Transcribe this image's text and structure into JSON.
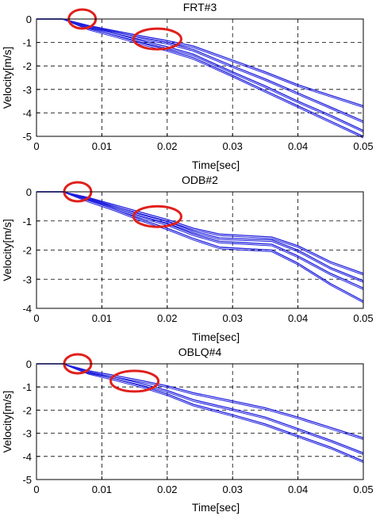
{
  "chart_data": [
    {
      "type": "line",
      "title": "FRT#3",
      "xlabel": "Time[sec]",
      "ylabel": "Velocity[m/s]",
      "xlim": [
        0,
        0.05
      ],
      "ylim": [
        -5,
        0
      ],
      "xticks": [
        "0",
        "0.01",
        "0.02",
        "0.03",
        "0.04",
        "0.05"
      ],
      "yticks": [
        "0",
        "-1",
        "-2",
        "-3",
        "-4",
        "-5"
      ],
      "grid": true,
      "series_color": "#1f1fdd",
      "highlight_color": "#e0201c",
      "series": [
        {
          "x": [
            0,
            0.004,
            0.008,
            0.012,
            0.016,
            0.02,
            0.024,
            0.03,
            0.035,
            0.04,
            0.045,
            0.05
          ],
          "y": [
            0,
            0,
            -0.3,
            -0.55,
            -0.8,
            -1.0,
            -1.3,
            -2.0,
            -2.55,
            -3.15,
            -3.75,
            -4.35
          ]
        },
        {
          "x": [
            0,
            0.004,
            0.008,
            0.012,
            0.016,
            0.02,
            0.024,
            0.03,
            0.035,
            0.04,
            0.045,
            0.05
          ],
          "y": [
            0,
            0,
            -0.35,
            -0.62,
            -0.92,
            -1.18,
            -1.5,
            -2.25,
            -2.85,
            -3.5,
            -4.1,
            -4.75
          ]
        },
        {
          "x": [
            0,
            0.004,
            0.008,
            0.012,
            0.016,
            0.02,
            0.024,
            0.03,
            0.035,
            0.04,
            0.045,
            0.05
          ],
          "y": [
            0,
            0,
            -0.4,
            -0.7,
            -1.02,
            -1.3,
            -1.65,
            -2.4,
            -3.05,
            -3.7,
            -4.35,
            -5.0
          ]
        },
        {
          "x": [
            0,
            0.004,
            0.008,
            0.012,
            0.016,
            0.02,
            0.024,
            0.03,
            0.035,
            0.04,
            0.045,
            0.05
          ],
          "y": [
            0,
            0,
            -0.28,
            -0.5,
            -0.72,
            -0.92,
            -1.15,
            -1.75,
            -2.25,
            -2.8,
            -3.25,
            -3.7
          ]
        }
      ],
      "highlights": [
        {
          "x": 0.007,
          "y": 0.0
        },
        {
          "x": 0.0185,
          "y": -0.85
        }
      ]
    },
    {
      "type": "line",
      "title": "ODB#2",
      "xlabel": "Time[sec]",
      "ylabel": "Velocity[m/s]",
      "xlim": [
        0,
        0.05
      ],
      "ylim": [
        -4,
        0
      ],
      "xticks": [
        "0",
        "0.01",
        "0.02",
        "0.03",
        "0.04",
        "0.05"
      ],
      "yticks": [
        "0",
        "-1",
        "-2",
        "-3",
        "-4"
      ],
      "grid": true,
      "series_color": "#1f1fdd",
      "highlight_color": "#e0201c",
      "series": [
        {
          "x": [
            0,
            0.004,
            0.008,
            0.012,
            0.016,
            0.02,
            0.024,
            0.028,
            0.032,
            0.036,
            0.04,
            0.045,
            0.05
          ],
          "y": [
            0,
            0,
            -0.2,
            -0.45,
            -0.7,
            -0.95,
            -1.25,
            -1.45,
            -1.5,
            -1.55,
            -1.85,
            -2.4,
            -2.8
          ]
        },
        {
          "x": [
            0,
            0.004,
            0.008,
            0.012,
            0.016,
            0.02,
            0.024,
            0.028,
            0.032,
            0.036,
            0.04,
            0.045,
            0.05
          ],
          "y": [
            0,
            0,
            -0.25,
            -0.55,
            -0.85,
            -1.1,
            -1.45,
            -1.7,
            -1.75,
            -1.8,
            -2.2,
            -2.8,
            -3.3
          ]
        },
        {
          "x": [
            0,
            0.004,
            0.008,
            0.012,
            0.016,
            0.02,
            0.024,
            0.028,
            0.032,
            0.036,
            0.04,
            0.045,
            0.05
          ],
          "y": [
            0,
            0,
            -0.3,
            -0.6,
            -0.95,
            -1.25,
            -1.6,
            -1.9,
            -1.95,
            -2.0,
            -2.45,
            -3.15,
            -3.75
          ]
        },
        {
          "x": [
            0,
            0.004,
            0.008,
            0.012,
            0.016,
            0.02,
            0.024,
            0.028,
            0.032,
            0.036,
            0.04,
            0.045,
            0.05
          ],
          "y": [
            0,
            0,
            -0.22,
            -0.5,
            -0.78,
            -1.02,
            -1.35,
            -1.58,
            -1.62,
            -1.65,
            -2.0,
            -2.6,
            -3.05
          ]
        }
      ],
      "highlights": [
        {
          "x": 0.0063,
          "y": 0.0
        },
        {
          "x": 0.0185,
          "y": -0.85
        }
      ]
    },
    {
      "type": "line",
      "title": "OBLQ#4",
      "xlabel": "Time[sec]",
      "ylabel": "Velocity[m/s]",
      "xlim": [
        0,
        0.05
      ],
      "ylim": [
        -5,
        0
      ],
      "xticks": [
        "0",
        "0.01",
        "0.02",
        "0.03",
        "0.04",
        "0.05"
      ],
      "yticks": [
        "0",
        "-1",
        "-2",
        "-3",
        "-4",
        "-5"
      ],
      "grid": true,
      "series_color": "#1f1fdd",
      "highlight_color": "#e0201c",
      "series": [
        {
          "x": [
            0,
            0.004,
            0.008,
            0.012,
            0.016,
            0.02,
            0.024,
            0.03,
            0.035,
            0.04,
            0.045,
            0.05
          ],
          "y": [
            0,
            0,
            -0.3,
            -0.5,
            -0.72,
            -0.95,
            -1.25,
            -1.6,
            -1.9,
            -2.3,
            -2.75,
            -3.2
          ]
        },
        {
          "x": [
            0,
            0.004,
            0.008,
            0.012,
            0.016,
            0.02,
            0.024,
            0.03,
            0.035,
            0.04,
            0.045,
            0.05
          ],
          "y": [
            0,
            0,
            -0.35,
            -0.58,
            -0.85,
            -1.15,
            -1.55,
            -1.95,
            -2.3,
            -2.8,
            -3.3,
            -3.85
          ]
        },
        {
          "x": [
            0,
            0.004,
            0.008,
            0.012,
            0.016,
            0.02,
            0.024,
            0.03,
            0.035,
            0.04,
            0.045,
            0.05
          ],
          "y": [
            0,
            0,
            -0.38,
            -0.65,
            -0.95,
            -1.3,
            -1.75,
            -2.2,
            -2.6,
            -3.1,
            -3.6,
            -4.2
          ]
        }
      ],
      "highlights": [
        {
          "x": 0.0063,
          "y": 0.0
        },
        {
          "x": 0.015,
          "y": -0.75
        }
      ]
    }
  ]
}
